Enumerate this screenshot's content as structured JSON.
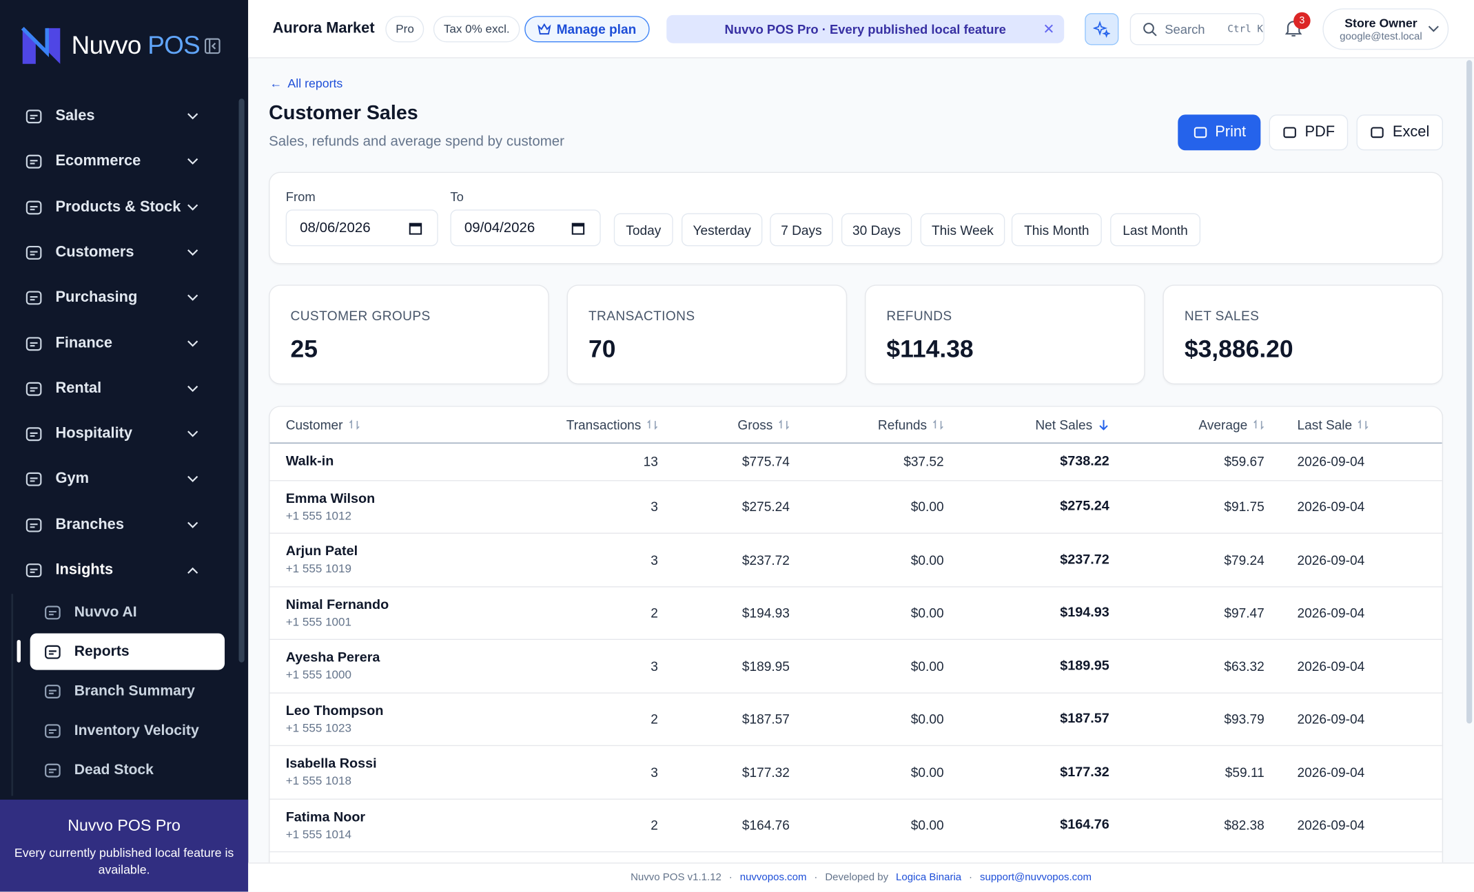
{
  "brand": {
    "name": "Nuvvo",
    "suffix": "POS"
  },
  "nav": [
    "Sales",
    "Ecommerce",
    "Products & Stock",
    "Customers",
    "Purchasing",
    "Finance",
    "Rental",
    "Hospitality",
    "Gym",
    "Branches",
    "Insights"
  ],
  "nav_sub": [
    "Nuvvo AI",
    "Reports",
    "Branch Summary",
    "Inventory Velocity",
    "Dead Stock"
  ],
  "promo": {
    "title": "Nuvvo POS Pro",
    "text": "Every currently published local feature is available."
  },
  "topbar": {
    "store": "Aurora Market",
    "plan": "Pro",
    "tax": "Tax 0% excl.",
    "manage": "Manage plan",
    "banner": "Nuvvo POS Pro · Every published local feature",
    "search": "Search",
    "shortcut": "Ctrl K",
    "notifications": "3",
    "user": "Store Owner",
    "email": "google@test.local"
  },
  "page": {
    "back": "All reports",
    "title": "Customer Sales",
    "subtitle": "Sales, refunds and average spend by customer",
    "actions": [
      "Print",
      "PDF",
      "Excel"
    ]
  },
  "filters": {
    "from_label": "From",
    "from": "08/06/2026",
    "to_label": "To",
    "to": "09/04/2026",
    "presets": [
      "Today",
      "Yesterday",
      "7 Days",
      "30 Days",
      "This Week",
      "This Month",
      "Last Month"
    ]
  },
  "stats": [
    {
      "label": "CUSTOMER GROUPS",
      "value": "25"
    },
    {
      "label": "TRANSACTIONS",
      "value": "70"
    },
    {
      "label": "REFUNDS",
      "value": "$114.38"
    },
    {
      "label": "NET SALES",
      "value": "$3,886.20"
    }
  ],
  "table": {
    "columns": [
      "Customer",
      "Transactions",
      "Gross",
      "Refunds",
      "Net Sales",
      "Average",
      "Last Sale"
    ],
    "rows": [
      {
        "name": "Walk-in",
        "cells": [
          "13",
          "$775.74",
          "$37.52",
          "$738.22",
          "$59.67",
          "2026-09-04"
        ]
      },
      {
        "name": "Emma Wilson",
        "phone": "+1 555 1012",
        "cells": [
          "3",
          "$275.24",
          "$0.00",
          "$275.24",
          "$91.75",
          "2026-09-04"
        ]
      },
      {
        "name": "Arjun Patel",
        "phone": "+1 555 1019",
        "cells": [
          "3",
          "$237.72",
          "$0.00",
          "$237.72",
          "$79.24",
          "2026-09-04"
        ]
      },
      {
        "name": "Nimal Fernando",
        "phone": "+1 555 1001",
        "cells": [
          "2",
          "$194.93",
          "$0.00",
          "$194.93",
          "$97.47",
          "2026-09-04"
        ]
      },
      {
        "name": "Ayesha Perera",
        "phone": "+1 555 1000",
        "cells": [
          "3",
          "$189.95",
          "$0.00",
          "$189.95",
          "$63.32",
          "2026-09-04"
        ]
      },
      {
        "name": "Leo Thompson",
        "phone": "+1 555 1023",
        "cells": [
          "2",
          "$187.57",
          "$0.00",
          "$187.57",
          "$93.79",
          "2026-09-04"
        ]
      },
      {
        "name": "Isabella Rossi",
        "phone": "+1 555 1018",
        "cells": [
          "3",
          "$177.32",
          "$0.00",
          "$177.32",
          "$59.11",
          "2026-09-04"
        ]
      },
      {
        "name": "Fatima Noor",
        "phone": "+1 555 1014",
        "cells": [
          "2",
          "$164.76",
          "$0.00",
          "$164.76",
          "$82.38",
          "2026-09-04"
        ]
      }
    ]
  },
  "footer": {
    "version": "Nuvvo POS v1.1.12",
    "site": "nuvvopos.com",
    "dev_label": "Developed by",
    "dev": "Logica Binaria",
    "email": "support@nuvvopos.com"
  }
}
